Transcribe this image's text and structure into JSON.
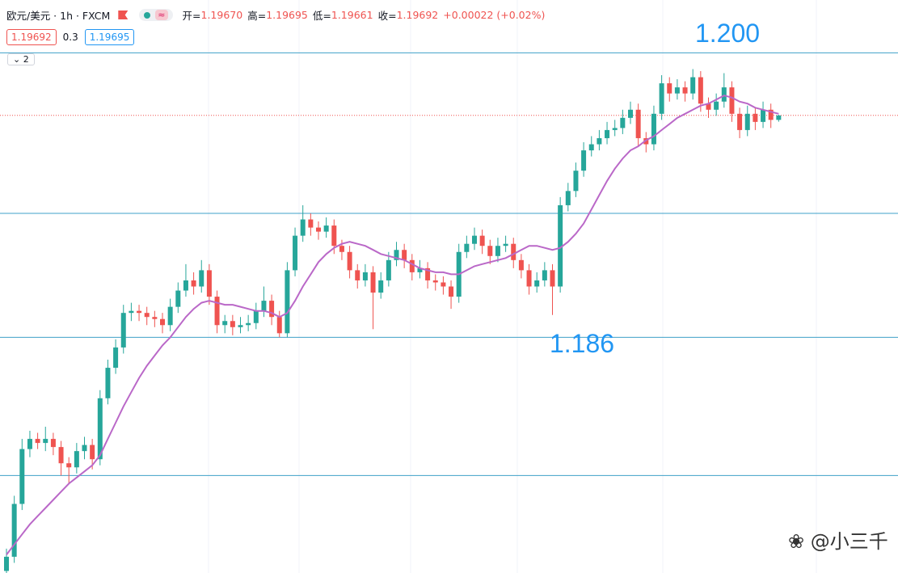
{
  "header": {
    "symbol": "欧元/美元 · 1h · FXCM",
    "open_label": "开=",
    "open": "1.19670",
    "high_label": "高=",
    "high": "1.19695",
    "low_label": "低=",
    "low": "1.19661",
    "close_label": "收=",
    "close": "1.19692",
    "change": "+0.00022 (+0.02%)",
    "indicator": "≈",
    "bid": "1.19692",
    "spread": "0.3",
    "ask": "1.19695",
    "indicators_count": "2"
  },
  "watermark": "@小三千",
  "chart_data": {
    "type": "candlestick",
    "ylim": [
      1.1744,
      1.2026
    ],
    "up_color": "#26a69a",
    "down_color": "#ef5350",
    "ohlc": [
      [
        1.1745,
        1.1756,
        1.1741,
        1.1752
      ],
      [
        1.1752,
        1.1782,
        1.1749,
        1.1778
      ],
      [
        1.1778,
        1.181,
        1.1775,
        1.1805
      ],
      [
        1.1805,
        1.1814,
        1.1801,
        1.181
      ],
      [
        1.181,
        1.1813,
        1.1805,
        1.1808
      ],
      [
        1.1808,
        1.1816,
        1.1804,
        1.181
      ],
      [
        1.181,
        1.1813,
        1.1802,
        1.1806
      ],
      [
        1.1806,
        1.1809,
        1.1792,
        1.1798
      ],
      [
        1.1798,
        1.1801,
        1.1788,
        1.1796
      ],
      [
        1.1796,
        1.1808,
        1.1793,
        1.1804
      ],
      [
        1.1804,
        1.1811,
        1.18,
        1.1807
      ],
      [
        1.1807,
        1.181,
        1.1795,
        1.18
      ],
      [
        1.18,
        1.1834,
        1.1797,
        1.183
      ],
      [
        1.183,
        1.1849,
        1.1827,
        1.1845
      ],
      [
        1.1845,
        1.1859,
        1.1842,
        1.1855
      ],
      [
        1.1855,
        1.1876,
        1.1852,
        1.1872
      ],
      [
        1.1872,
        1.1877,
        1.1868,
        1.1873
      ],
      [
        1.1873,
        1.1876,
        1.1868,
        1.1872
      ],
      [
        1.1872,
        1.1875,
        1.1866,
        1.187
      ],
      [
        1.187,
        1.1873,
        1.1865,
        1.1869
      ],
      [
        1.1869,
        1.1872,
        1.1862,
        1.1866
      ],
      [
        1.1866,
        1.1879,
        1.1863,
        1.1875
      ],
      [
        1.1875,
        1.1887,
        1.1872,
        1.1883
      ],
      [
        1.1883,
        1.1896,
        1.188,
        1.1888
      ],
      [
        1.1888,
        1.1892,
        1.1881,
        1.1885
      ],
      [
        1.1885,
        1.1898,
        1.1882,
        1.1893
      ],
      [
        1.1893,
        1.1896,
        1.1876,
        1.188
      ],
      [
        1.188,
        1.1883,
        1.1862,
        1.1866
      ],
      [
        1.1866,
        1.1871,
        1.1862,
        1.1868
      ],
      [
        1.1868,
        1.1871,
        1.1861,
        1.1865
      ],
      [
        1.1865,
        1.187,
        1.1862,
        1.1866
      ],
      [
        1.1866,
        1.1871,
        1.1863,
        1.1867
      ],
      [
        1.1867,
        1.1877,
        1.1864,
        1.1873
      ],
      [
        1.1873,
        1.1885,
        1.187,
        1.1878
      ],
      [
        1.1878,
        1.1881,
        1.1866,
        1.187
      ],
      [
        1.187,
        1.1873,
        1.186,
        1.1862
      ],
      [
        1.1862,
        1.1897,
        1.186,
        1.1893
      ],
      [
        1.1893,
        1.1914,
        1.189,
        1.191
      ],
      [
        1.191,
        1.1925,
        1.1907,
        1.1918
      ],
      [
        1.1918,
        1.1921,
        1.191,
        1.1914
      ],
      [
        1.1914,
        1.1917,
        1.1908,
        1.1912
      ],
      [
        1.1912,
        1.1919,
        1.1909,
        1.1915
      ],
      [
        1.1915,
        1.1918,
        1.1901,
        1.1905
      ],
      [
        1.1905,
        1.1908,
        1.1898,
        1.1902
      ],
      [
        1.1902,
        1.1905,
        1.1889,
        1.1893
      ],
      [
        1.1893,
        1.1896,
        1.1884,
        1.1888
      ],
      [
        1.1888,
        1.1896,
        1.1885,
        1.1892
      ],
      [
        1.1892,
        1.1895,
        1.1864,
        1.1882
      ],
      [
        1.1882,
        1.1892,
        1.1879,
        1.1888
      ],
      [
        1.1888,
        1.1902,
        1.1885,
        1.1898
      ],
      [
        1.1898,
        1.1907,
        1.1895,
        1.1903
      ],
      [
        1.1903,
        1.1906,
        1.1894,
        1.1898
      ],
      [
        1.1898,
        1.1901,
        1.1888,
        1.1892
      ],
      [
        1.1892,
        1.1898,
        1.1889,
        1.1894
      ],
      [
        1.1894,
        1.1897,
        1.1884,
        1.1888
      ],
      [
        1.1888,
        1.1891,
        1.1883,
        1.1887
      ],
      [
        1.1887,
        1.189,
        1.1881,
        1.1885
      ],
      [
        1.1885,
        1.1888,
        1.1874,
        1.188
      ],
      [
        1.188,
        1.1906,
        1.1877,
        1.1902
      ],
      [
        1.1902,
        1.191,
        1.1899,
        1.1906
      ],
      [
        1.1906,
        1.1914,
        1.1903,
        1.191
      ],
      [
        1.191,
        1.1913,
        1.1901,
        1.1905
      ],
      [
        1.1905,
        1.1908,
        1.1896,
        1.19
      ],
      [
        1.19,
        1.1909,
        1.1897,
        1.1905
      ],
      [
        1.1905,
        1.191,
        1.1902,
        1.1906
      ],
      [
        1.1906,
        1.1909,
        1.1894,
        1.1898
      ],
      [
        1.1898,
        1.1901,
        1.1889,
        1.1893
      ],
      [
        1.1893,
        1.1896,
        1.1881,
        1.1885
      ],
      [
        1.1885,
        1.1892,
        1.1882,
        1.1888
      ],
      [
        1.1888,
        1.1897,
        1.1885,
        1.1893
      ],
      [
        1.1893,
        1.1896,
        1.1871,
        1.1885
      ],
      [
        1.1885,
        1.1929,
        1.1882,
        1.1925
      ],
      [
        1.1925,
        1.1936,
        1.1922,
        1.1932
      ],
      [
        1.1932,
        1.1946,
        1.1929,
        1.1942
      ],
      [
        1.1942,
        1.1956,
        1.1939,
        1.1952
      ],
      [
        1.1952,
        1.1959,
        1.1949,
        1.1955
      ],
      [
        1.1955,
        1.1962,
        1.1952,
        1.1958
      ],
      [
        1.1958,
        1.1966,
        1.1955,
        1.1962
      ],
      [
        1.1962,
        1.1967,
        1.1959,
        1.1963
      ],
      [
        1.1963,
        1.1972,
        1.196,
        1.1968
      ],
      [
        1.1968,
        1.1976,
        1.1965,
        1.1972
      ],
      [
        1.1972,
        1.1975,
        1.1954,
        1.1958
      ],
      [
        1.1958,
        1.1961,
        1.1951,
        1.1955
      ],
      [
        1.1955,
        1.1974,
        1.1952,
        1.197
      ],
      [
        1.197,
        1.1989,
        1.1967,
        1.1985
      ],
      [
        1.1985,
        1.1988,
        1.1976,
        1.198
      ],
      [
        1.198,
        1.1987,
        1.1977,
        1.1983
      ],
      [
        1.1983,
        1.1986,
        1.1976,
        1.198
      ],
      [
        1.198,
        1.1992,
        1.1977,
        1.1988
      ],
      [
        1.1988,
        1.1991,
        1.1971,
        1.1975
      ],
      [
        1.1975,
        1.1978,
        1.1968,
        1.1972
      ],
      [
        1.1972,
        1.198,
        1.1969,
        1.1976
      ],
      [
        1.1976,
        1.199,
        1.1973,
        1.1983
      ],
      [
        1.1983,
        1.1986,
        1.1966,
        1.197
      ],
      [
        1.197,
        1.1973,
        1.1958,
        1.1962
      ],
      [
        1.1962,
        1.1974,
        1.1959,
        1.197
      ],
      [
        1.197,
        1.1973,
        1.1962,
        1.1966
      ],
      [
        1.1966,
        1.1976,
        1.1963,
        1.1972
      ],
      [
        1.1972,
        1.1975,
        1.1963,
        1.1967
      ],
      [
        1.1967,
        1.19695,
        1.19661,
        1.19692
      ]
    ],
    "ma": {
      "color": "#ba68c8",
      "values": [
        1.1753,
        1.1758,
        1.1763,
        1.1768,
        1.1772,
        1.1776,
        1.178,
        1.1784,
        1.1788,
        1.1791,
        1.1794,
        1.1797,
        1.1802,
        1.181,
        1.1818,
        1.1826,
        1.1833,
        1.184,
        1.1846,
        1.1851,
        1.1856,
        1.186,
        1.1865,
        1.187,
        1.1874,
        1.1877,
        1.1878,
        1.1877,
        1.1876,
        1.1876,
        1.1875,
        1.1874,
        1.1873,
        1.1873,
        1.1872,
        1.187,
        1.1872,
        1.1878,
        1.1885,
        1.1891,
        1.1897,
        1.1901,
        1.1904,
        1.1906,
        1.1907,
        1.1906,
        1.1905,
        1.1903,
        1.1901,
        1.19,
        1.1899,
        1.1898,
        1.1896,
        1.1894,
        1.1893,
        1.1892,
        1.1892,
        1.1891,
        1.1891,
        1.1893,
        1.1895,
        1.1896,
        1.1897,
        1.1898,
        1.1899,
        1.1901,
        1.1903,
        1.1905,
        1.1905,
        1.1904,
        1.1903,
        1.1904,
        1.1907,
        1.1911,
        1.1916,
        1.1923,
        1.193,
        1.1937,
        1.1943,
        1.1948,
        1.1952,
        1.1954,
        1.1957,
        1.1959,
        1.1962,
        1.1965,
        1.1968,
        1.197,
        1.1972,
        1.1974,
        1.1975,
        1.1977,
        1.1979,
        1.1978,
        1.1976,
        1.1975,
        1.1973,
        1.1972,
        1.1971,
        1.197
      ]
    },
    "levels": [
      {
        "value": 1.2,
        "label": "1.200"
      },
      {
        "value": 1.1921
      },
      {
        "value": 1.186,
        "label": "1.186"
      },
      {
        "value": 1.1792
      }
    ],
    "level_color": "#3fa0c8",
    "last_price": {
      "value": 1.19692,
      "color": "#ef5350"
    }
  }
}
